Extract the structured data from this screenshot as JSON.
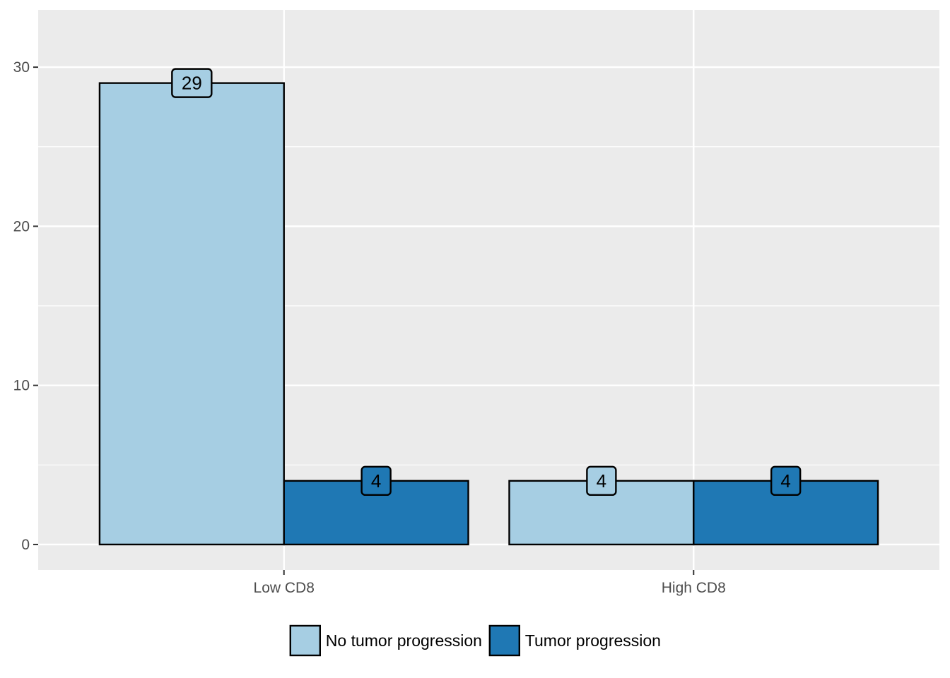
{
  "chart_data": {
    "type": "bar",
    "categories": [
      "Low CD8",
      "High CD8"
    ],
    "series": [
      {
        "name": "No tumor progression",
        "values": [
          29,
          4
        ],
        "color": "#a6cee3"
      },
      {
        "name": "Tumor progression",
        "values": [
          4,
          4
        ],
        "color": "#1f78b4"
      }
    ],
    "ylim": [
      -1.6,
      33.6
    ],
    "yticks": [
      0,
      10,
      20,
      30
    ],
    "grid": true,
    "legend_position": "bottom",
    "panel_background": "#ebebeb",
    "gridline_color": "#ffffff",
    "bar_outline_color": "#000000"
  }
}
